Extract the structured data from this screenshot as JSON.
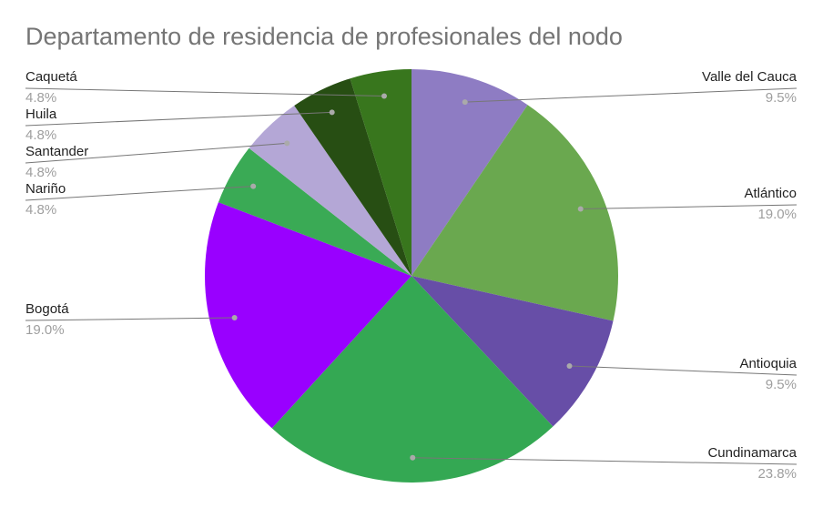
{
  "chart_data": {
    "type": "pie",
    "title": "Departamento de residencia de profesionales del nodo",
    "categories": [
      "Valle del Cauca",
      "Atlántico",
      "Antioquia",
      "Cundinamarca",
      "Bogotá",
      "Nariño",
      "Santander",
      "Huila",
      "Caquetá"
    ],
    "values": [
      9.5,
      19.0,
      9.5,
      23.8,
      19.0,
      4.8,
      4.8,
      4.8,
      4.8
    ],
    "value_labels": [
      "9.5%",
      "19.0%",
      "9.5%",
      "23.8%",
      "19.0%",
      "4.8%",
      "4.8%",
      "4.8%",
      "4.8%"
    ],
    "colors": [
      "#8e7cc3",
      "#6aa84f",
      "#674ea7",
      "#34a853",
      "#9900ff",
      "#3aaa55",
      "#b4a7d6",
      "#274e13",
      "#38761d"
    ]
  }
}
